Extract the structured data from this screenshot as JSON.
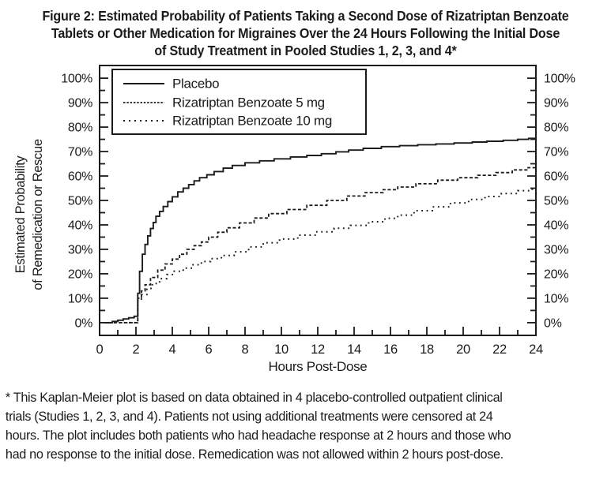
{
  "figure": {
    "label": "Figure 2",
    "title_lines": [
      "Figure 2: Estimated Probability of Patients Taking a Second Dose of Rizatriptan Benzoate",
      "Tablets or Other Medication for Migraines Over the 24 Hours Following the Initial Dose",
      "of Study Treatment in Pooled Studies 1, 2, 3, and 4*"
    ],
    "footnote_lines": [
      "* This Kaplan-Meier plot is based on data obtained in 4 placebo-controlled outpatient clinical",
      "trials (Studies 1, 2, 3, and 4). Patients not using additional treatments were censored at 24",
      "hours. The plot includes both patients who had headache response at 2 hours and those who",
      "had no response to the initial dose. Remedication was not allowed within 2 hours post-dose."
    ]
  },
  "chart_data": {
    "type": "line",
    "plot_style": "kaplan-meier-step",
    "title": "Figure 2: Estimated Probability of Patients Taking a Second Dose of Rizatriptan Benzoate Tablets or Other Medication for Migraines Over the 24 Hours Following the Initial Dose of Study Treatment in Pooled Studies 1, 2, 3, and 4*",
    "xlabel": "Hours Post-Dose",
    "ylabel_lines": [
      "Estimated Probability",
      "of Remedication or Rescue"
    ],
    "xlim": [
      0,
      24
    ],
    "ylim_drawn": [
      -5.2,
      105.2
    ],
    "x_major_ticks": [
      0,
      2,
      4,
      6,
      8,
      10,
      12,
      14,
      16,
      18,
      20,
      22,
      24
    ],
    "x_minor_ticks": [
      1,
      3,
      5,
      7,
      9,
      11,
      13,
      15,
      17,
      19,
      21,
      23
    ],
    "x_tick_labels": [
      "0",
      "2",
      "4",
      "6",
      "8",
      "10",
      "12",
      "14",
      "16",
      "18",
      "20",
      "22",
      "24"
    ],
    "y_major_ticks": [
      0,
      10,
      20,
      30,
      40,
      50,
      60,
      70,
      80,
      90,
      100
    ],
    "y_minor_ticks": [
      5,
      15,
      25,
      35,
      45,
      55,
      65,
      75,
      85,
      95
    ],
    "y_tick_labels": [
      "0%",
      "10%",
      "20%",
      "30%",
      "40%",
      "50%",
      "60%",
      "70%",
      "80%",
      "90%",
      "100%"
    ],
    "y_labels_both_sides": true,
    "grid": false,
    "axis_color": "#1b1b1b",
    "legend_position": "top-left",
    "legend": {
      "entries": [
        {
          "label": "Placebo",
          "style": "solid"
        },
        {
          "label": "Rizatriptan Benzoate 5 mg",
          "style": "dashed"
        },
        {
          "label": "Rizatriptan Benzoate 10 mg",
          "style": "dotted"
        }
      ]
    },
    "series": [
      {
        "name": "Placebo",
        "style": "solid",
        "points": [
          [
            0.25,
            0
          ],
          [
            0.7,
            0.5
          ],
          [
            1.0,
            1.0
          ],
          [
            1.3,
            1.5
          ],
          [
            1.6,
            2.0
          ],
          [
            1.9,
            2.6
          ],
          [
            2.1,
            12
          ],
          [
            2.2,
            21
          ],
          [
            2.35,
            28
          ],
          [
            2.5,
            32
          ],
          [
            2.65,
            35.5
          ],
          [
            2.8,
            38.5
          ],
          [
            2.95,
            41
          ],
          [
            3.1,
            43.5
          ],
          [
            3.3,
            45.5
          ],
          [
            3.5,
            47.5
          ],
          [
            3.75,
            49.5
          ],
          [
            4.0,
            51.5
          ],
          [
            4.3,
            53.5
          ],
          [
            4.6,
            55
          ],
          [
            4.9,
            56.5
          ],
          [
            5.2,
            58
          ],
          [
            5.5,
            59.3
          ],
          [
            5.9,
            60.5
          ],
          [
            6.3,
            61.8
          ],
          [
            6.8,
            63.2
          ],
          [
            7.3,
            64.3
          ],
          [
            8.0,
            65.4
          ],
          [
            8.8,
            66.2
          ],
          [
            9.6,
            67
          ],
          [
            10.5,
            67.8
          ],
          [
            11.4,
            68.4
          ],
          [
            12.2,
            69.1
          ],
          [
            13.0,
            69.9
          ],
          [
            13.7,
            70.6
          ],
          [
            14.5,
            71.3
          ],
          [
            15.5,
            72
          ],
          [
            16.5,
            72.4
          ],
          [
            17.5,
            72.8
          ],
          [
            18.5,
            73.1
          ],
          [
            19.5,
            73.5
          ],
          [
            20.5,
            73.9
          ],
          [
            21.3,
            74.2
          ],
          [
            22.2,
            74.6
          ],
          [
            23.0,
            75
          ],
          [
            23.6,
            75.4
          ],
          [
            24,
            75.4
          ]
        ]
      },
      {
        "name": "Rizatriptan Benzoate 5 mg",
        "style": "dashed",
        "points": [
          [
            0.5,
            0
          ],
          [
            2.0,
            0
          ],
          [
            2.1,
            10
          ],
          [
            2.3,
            13
          ],
          [
            2.5,
            15.5
          ],
          [
            2.8,
            18.5
          ],
          [
            3.2,
            21.5
          ],
          [
            3.6,
            24
          ],
          [
            4.0,
            26
          ],
          [
            4.4,
            28
          ],
          [
            4.8,
            30
          ],
          [
            5.2,
            31.5
          ],
          [
            5.6,
            33
          ],
          [
            6.0,
            35
          ],
          [
            6.5,
            37
          ],
          [
            7.0,
            38.8
          ],
          [
            7.7,
            40.8
          ],
          [
            8.5,
            42.8
          ],
          [
            9.3,
            44.6
          ],
          [
            10.3,
            46.3
          ],
          [
            11.4,
            48
          ],
          [
            12.5,
            50
          ],
          [
            13.6,
            51.8
          ],
          [
            14.6,
            53.2
          ],
          [
            15.6,
            54.4
          ],
          [
            16.4,
            55.5
          ],
          [
            17.4,
            56.8
          ],
          [
            18.6,
            58.3
          ],
          [
            19.7,
            59.3
          ],
          [
            20.8,
            60.3
          ],
          [
            21.8,
            61.4
          ],
          [
            22.7,
            62.5
          ],
          [
            23.5,
            63.4
          ],
          [
            24,
            63.8
          ]
        ]
      },
      {
        "name": "Rizatriptan Benzoate 10 mg",
        "style": "dotted",
        "points": [
          [
            0.5,
            0
          ],
          [
            2.0,
            0
          ],
          [
            2.1,
            9
          ],
          [
            2.3,
            11.5
          ],
          [
            2.6,
            14
          ],
          [
            2.9,
            16
          ],
          [
            3.3,
            18
          ],
          [
            3.7,
            19.7
          ],
          [
            4.1,
            21
          ],
          [
            4.6,
            22.3
          ],
          [
            5.1,
            23.7
          ],
          [
            5.6,
            25
          ],
          [
            6.1,
            26.2
          ],
          [
            6.7,
            27.5
          ],
          [
            7.4,
            29
          ],
          [
            8.2,
            31
          ],
          [
            9.0,
            32.7
          ],
          [
            9.9,
            34.2
          ],
          [
            10.9,
            35.8
          ],
          [
            11.9,
            37.2
          ],
          [
            12.9,
            38.6
          ],
          [
            13.8,
            39.8
          ],
          [
            14.8,
            41.3
          ],
          [
            15.7,
            42.7
          ],
          [
            16.4,
            44
          ],
          [
            17.3,
            45.8
          ],
          [
            18.3,
            47.4
          ],
          [
            19.3,
            49
          ],
          [
            20.3,
            50.4
          ],
          [
            21.2,
            51.6
          ],
          [
            22.1,
            52.8
          ],
          [
            23.0,
            54
          ],
          [
            23.8,
            55
          ],
          [
            24,
            55.2
          ]
        ]
      }
    ]
  }
}
